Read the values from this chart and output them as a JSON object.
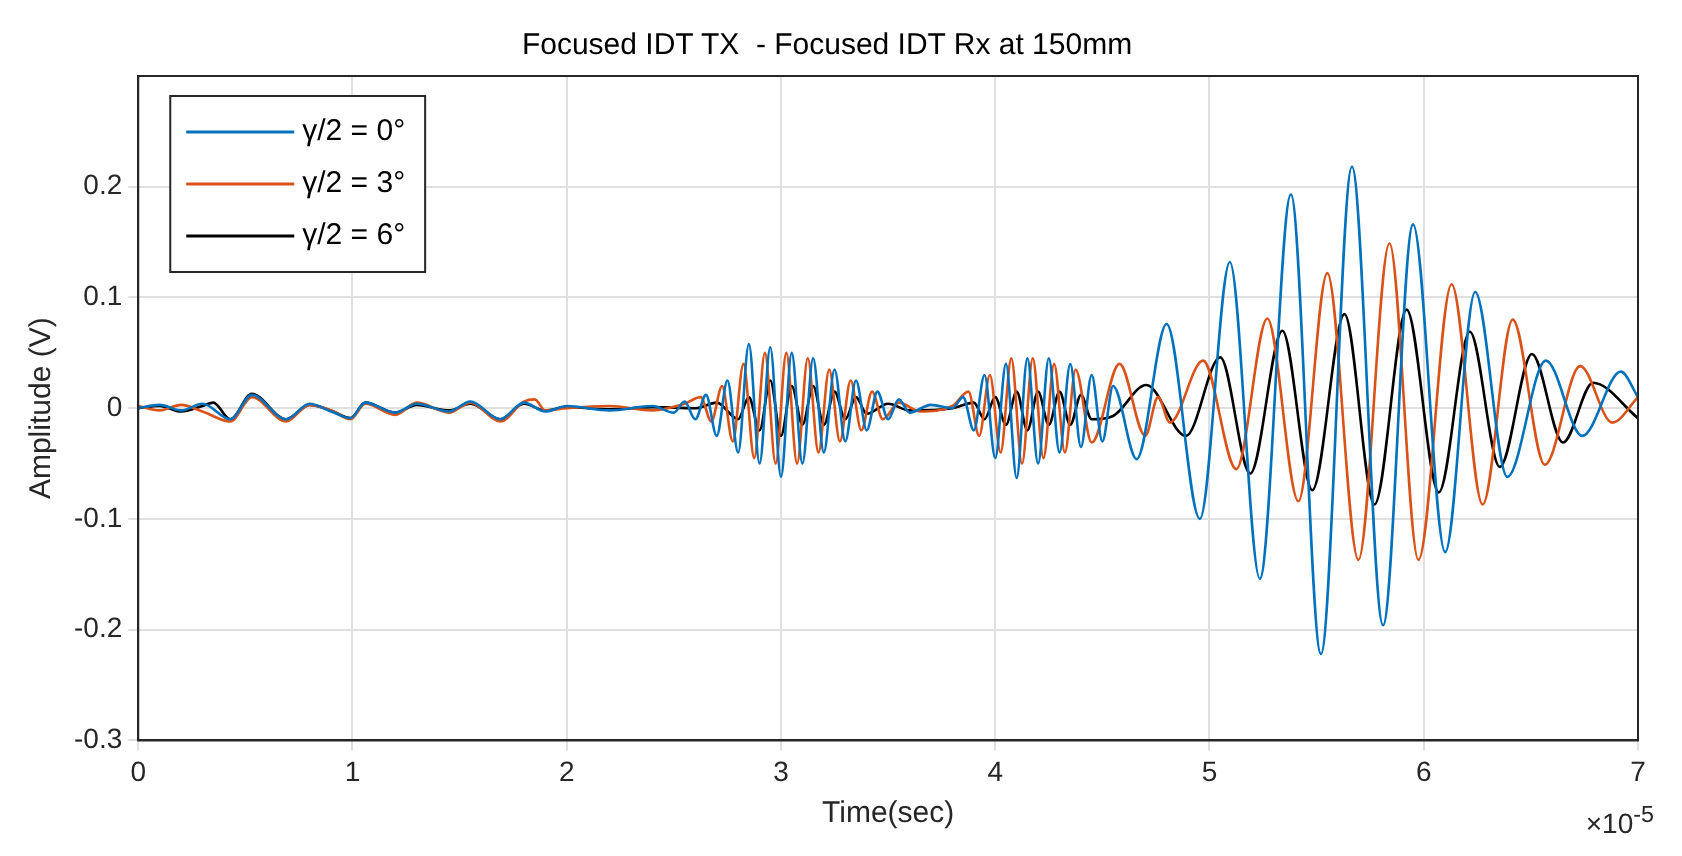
{
  "chart_data": {
    "type": "line",
    "title": "Focused IDT TX  - Focused IDT Rx at 150mm",
    "xlabel": "Time(sec)",
    "ylabel": "Amplitude (V)",
    "xlim": [
      0,
      7
    ],
    "xticks": [
      0,
      1,
      2,
      3,
      4,
      5,
      6,
      7
    ],
    "ylim": [
      -0.3,
      0.3
    ],
    "yticks": [
      -0.3,
      -0.2,
      -0.1,
      0,
      0.1,
      0.2
    ],
    "grid": true,
    "legend": "top left",
    "marker": "none",
    "line_style": "solid",
    "annotations": [
      "×10$^{-5}$"
    ],
    "series": [
      {
        "name": "γ/2 = 0°",
        "color": "#0072bd",
        "x": [
          0,
          0.1,
          0.2,
          0.3,
          0.43,
          0.53,
          0.69,
          0.8,
          0.9,
          0.99,
          1.06,
          1.2,
          1.3,
          1.45,
          1.55,
          1.69,
          1.8,
          1.9,
          2.0,
          2.2,
          2.4,
          2.5,
          2.55,
          2.6,
          2.65,
          2.7,
          2.75,
          2.8,
          2.85,
          2.9,
          2.95,
          3.0,
          3.05,
          3.1,
          3.15,
          3.2,
          3.25,
          3.3,
          3.35,
          3.4,
          3.45,
          3.5,
          3.55,
          3.6,
          3.7,
          3.8,
          3.85,
          3.9,
          3.95,
          4.0,
          4.05,
          4.1,
          4.15,
          4.2,
          4.25,
          4.3,
          4.35,
          4.4,
          4.45,
          4.5,
          4.55,
          4.66,
          4.8,
          4.955,
          5.095,
          5.235,
          5.38,
          5.52,
          5.665,
          5.81,
          5.95,
          6.1,
          6.24,
          6.39,
          6.57,
          6.74,
          6.92,
          7.0
        ],
        "values": [
          0,
          0.003,
          -0.002,
          0.004,
          -0.01,
          0.012,
          -0.01,
          0.004,
          -0.003,
          -0.009,
          0.005,
          -0.004,
          0.004,
          -0.003,
          0.006,
          -0.01,
          0.005,
          -0.003,
          0.002,
          -0.002,
          0.002,
          -0.004,
          0.006,
          -0.01,
          0.012,
          -0.025,
          0.025,
          -0.04,
          0.058,
          -0.05,
          0.055,
          -0.062,
          0.05,
          -0.05,
          0.045,
          -0.04,
          0.035,
          -0.03,
          0.025,
          -0.02,
          0.015,
          -0.01,
          0.008,
          -0.004,
          0.003,
          0,
          0.01,
          -0.02,
          0.03,
          -0.045,
          0.04,
          -0.063,
          0.045,
          -0.05,
          0.045,
          -0.04,
          0.04,
          -0.035,
          0.03,
          -0.03,
          0.02,
          -0.046,
          0.076,
          -0.1,
          0.132,
          -0.154,
          0.193,
          -0.222,
          0.218,
          -0.196,
          0.166,
          -0.13,
          0.105,
          -0.062,
          0.043,
          -0.025,
          0.033,
          0.01
        ]
      },
      {
        "name": "γ/2 = 3°",
        "color": "#d95319",
        "x": [
          0,
          0.1,
          0.2,
          0.3,
          0.43,
          0.53,
          0.69,
          0.8,
          0.9,
          0.99,
          1.06,
          1.2,
          1.3,
          1.45,
          1.55,
          1.69,
          1.8,
          1.85,
          1.9,
          2.0,
          2.2,
          2.4,
          2.55,
          2.625,
          2.675,
          2.725,
          2.775,
          2.825,
          2.875,
          2.925,
          2.975,
          3.025,
          3.075,
          3.125,
          3.175,
          3.225,
          3.275,
          3.325,
          3.375,
          3.425,
          3.475,
          3.55,
          3.65,
          3.8,
          3.875,
          3.925,
          3.975,
          4.025,
          4.075,
          4.125,
          4.175,
          4.225,
          4.275,
          4.325,
          4.375,
          4.45,
          4.58,
          4.7,
          4.76,
          4.815,
          4.97,
          5.125,
          5.27,
          5.415,
          5.55,
          5.695,
          5.84,
          5.975,
          6.13,
          6.275,
          6.415,
          6.565,
          6.73,
          6.88,
          7.0
        ],
        "values": [
          0.002,
          -0.002,
          0.003,
          -0.003,
          -0.012,
          0.01,
          -0.012,
          0.003,
          -0.002,
          -0.01,
          0.004,
          -0.006,
          0.005,
          -0.004,
          0.005,
          -0.012,
          0.006,
          0.008,
          -0.002,
          0,
          0.002,
          -0.002,
          0.004,
          0.01,
          -0.012,
          0.02,
          -0.03,
          0.04,
          -0.045,
          0.05,
          -0.05,
          0.05,
          -0.05,
          0.045,
          -0.04,
          0.035,
          -0.03,
          0.025,
          -0.02,
          0.015,
          -0.01,
          0.005,
          -0.003,
          0.002,
          0.015,
          -0.025,
          0.03,
          -0.04,
          0.045,
          -0.05,
          0.045,
          -0.045,
          0.04,
          -0.04,
          0.035,
          -0.031,
          0.04,
          -0.025,
          0.01,
          -0.013,
          0.043,
          -0.055,
          0.081,
          -0.084,
          0.122,
          -0.137,
          0.149,
          -0.137,
          0.112,
          -0.087,
          0.08,
          -0.051,
          0.038,
          -0.013,
          0.01
        ]
      },
      {
        "name": "γ/2 = 6°",
        "color": "#000000",
        "x": [
          0,
          0.1,
          0.2,
          0.3,
          0.35,
          0.43,
          0.53,
          0.69,
          0.8,
          0.9,
          0.99,
          1.06,
          1.2,
          1.3,
          1.45,
          1.55,
          1.69,
          1.8,
          1.9,
          2.0,
          2.2,
          2.4,
          2.6,
          2.7,
          2.8,
          2.85,
          2.9,
          2.95,
          3.0,
          3.05,
          3.1,
          3.15,
          3.2,
          3.25,
          3.3,
          3.35,
          3.4,
          3.5,
          3.6,
          3.8,
          3.9,
          3.95,
          4.0,
          4.05,
          4.1,
          4.15,
          4.2,
          4.25,
          4.3,
          4.35,
          4.4,
          4.45,
          4.55,
          4.705,
          4.89,
          5.05,
          5.19,
          5.34,
          5.48,
          5.63,
          5.77,
          5.92,
          6.07,
          6.215,
          6.355,
          6.505,
          6.65,
          6.79,
          7.0
        ],
        "values": [
          0,
          0.002,
          -0.003,
          0.002,
          0.005,
          -0.01,
          0.013,
          -0.01,
          0.003,
          -0.002,
          -0.009,
          0.005,
          -0.004,
          0.003,
          -0.002,
          0.004,
          -0.01,
          0.004,
          -0.002,
          0.001,
          -0.001,
          0.001,
          0,
          0.005,
          -0.01,
          0.01,
          -0.02,
          0.025,
          -0.025,
          0.02,
          -0.015,
          0.02,
          -0.015,
          0.015,
          -0.01,
          0.01,
          -0.005,
          0.004,
          -0.002,
          0,
          0.005,
          -0.01,
          0.01,
          -0.015,
          0.015,
          -0.02,
          0.015,
          -0.015,
          0.015,
          -0.015,
          0.012,
          -0.01,
          -0.007,
          0.021,
          -0.025,
          0.046,
          -0.059,
          0.07,
          -0.074,
          0.085,
          -0.087,
          0.089,
          -0.076,
          0.069,
          -0.053,
          0.049,
          -0.031,
          0.023,
          -0.009
        ]
      }
    ]
  }
}
